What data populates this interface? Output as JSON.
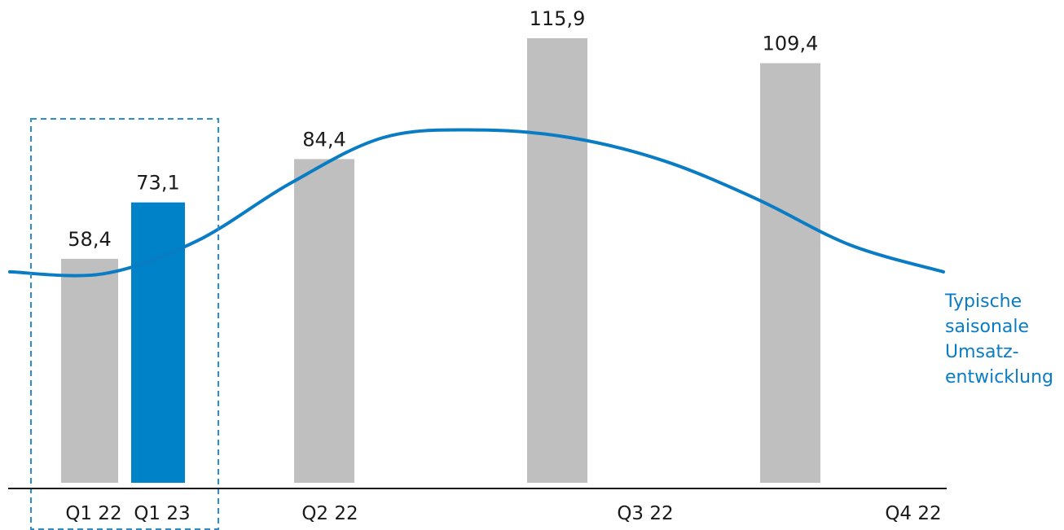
{
  "colors": {
    "bar_default": "#bfbfbf",
    "bar_highlight": "#0082c8",
    "trend_line": "#0a7cc4",
    "highlight_box": "#2a8fd0",
    "axis": "#1a1a1a",
    "text": "#1a1a1a"
  },
  "chart_data": {
    "type": "bar",
    "bars": [
      {
        "category": "Q1 22",
        "value": 58.4,
        "label": "58,4",
        "highlight": false
      },
      {
        "category": "Q1 23",
        "value": 73.1,
        "label": "73,1",
        "highlight": true
      },
      {
        "category": "Q2 22",
        "value": 84.4,
        "label": "84,4",
        "highlight": false
      },
      {
        "category": "",
        "value": 115.9,
        "label": "115,9",
        "highlight": false
      },
      {
        "category": "",
        "value": 109.4,
        "label": "109,4",
        "highlight": false
      }
    ],
    "x_tick_labels": [
      "Q1 22",
      "Q1 23",
      "Q2 22",
      "Q3 22",
      "Q4 22"
    ],
    "ylim": [
      0,
      120
    ],
    "grid": false,
    "legend_position": "right",
    "trend_line": {
      "label_lines": [
        "Typische",
        "saisonale",
        "Umsatz-",
        "entwicklung"
      ],
      "y": [
        55,
        54.5,
        63,
        78,
        90,
        92,
        90,
        84,
        74,
        62,
        55
      ]
    },
    "highlight_box_categories": [
      "Q1 22",
      "Q1 23"
    ]
  }
}
